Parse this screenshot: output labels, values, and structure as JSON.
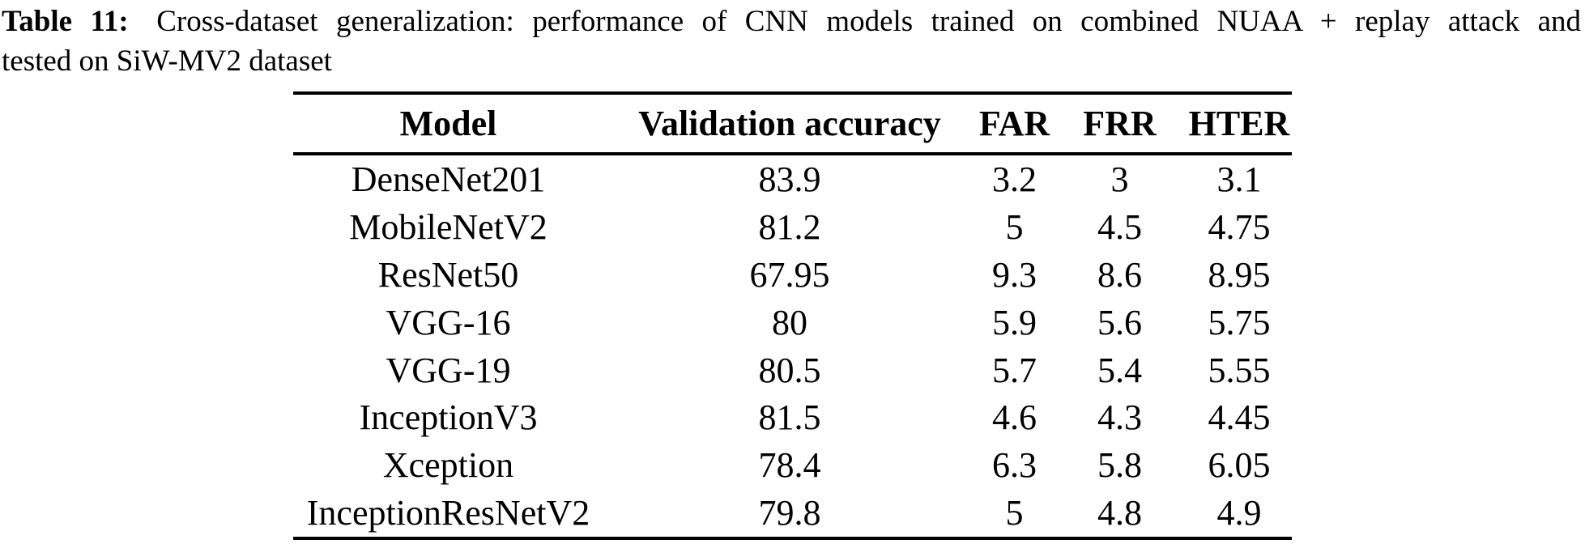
{
  "page": {
    "background": "#ffffff",
    "text_color": "#000000",
    "rule_color": "#000000"
  },
  "caption": {
    "label": "Table 11:",
    "text_line1": "Cross-dataset generalization: performance of CNN models trained on combined NUAA + replay attack and",
    "text_line2": "tested on SiW-MV2 dataset"
  },
  "table": {
    "columns": [
      "Model",
      "Validation accuracy",
      "FAR",
      "FRR",
      "HTER"
    ],
    "rows": [
      [
        "DenseNet201",
        "83.9",
        "3.2",
        "3",
        "3.1"
      ],
      [
        "MobileNetV2",
        "81.2",
        "5",
        "4.5",
        "4.75"
      ],
      [
        "ResNet50",
        "67.95",
        "9.3",
        "8.6",
        "8.95"
      ],
      [
        "VGG-16",
        "80",
        "5.9",
        "5.6",
        "5.75"
      ],
      [
        "VGG-19",
        "80.5",
        "5.7",
        "5.4",
        "5.55"
      ],
      [
        "InceptionV3",
        "81.5",
        "4.6",
        "4.3",
        "4.45"
      ],
      [
        "Xception",
        "78.4",
        "6.3",
        "5.8",
        "6.05"
      ],
      [
        "InceptionResNetV2",
        "79.8",
        "5",
        "4.8",
        "4.9"
      ]
    ]
  }
}
